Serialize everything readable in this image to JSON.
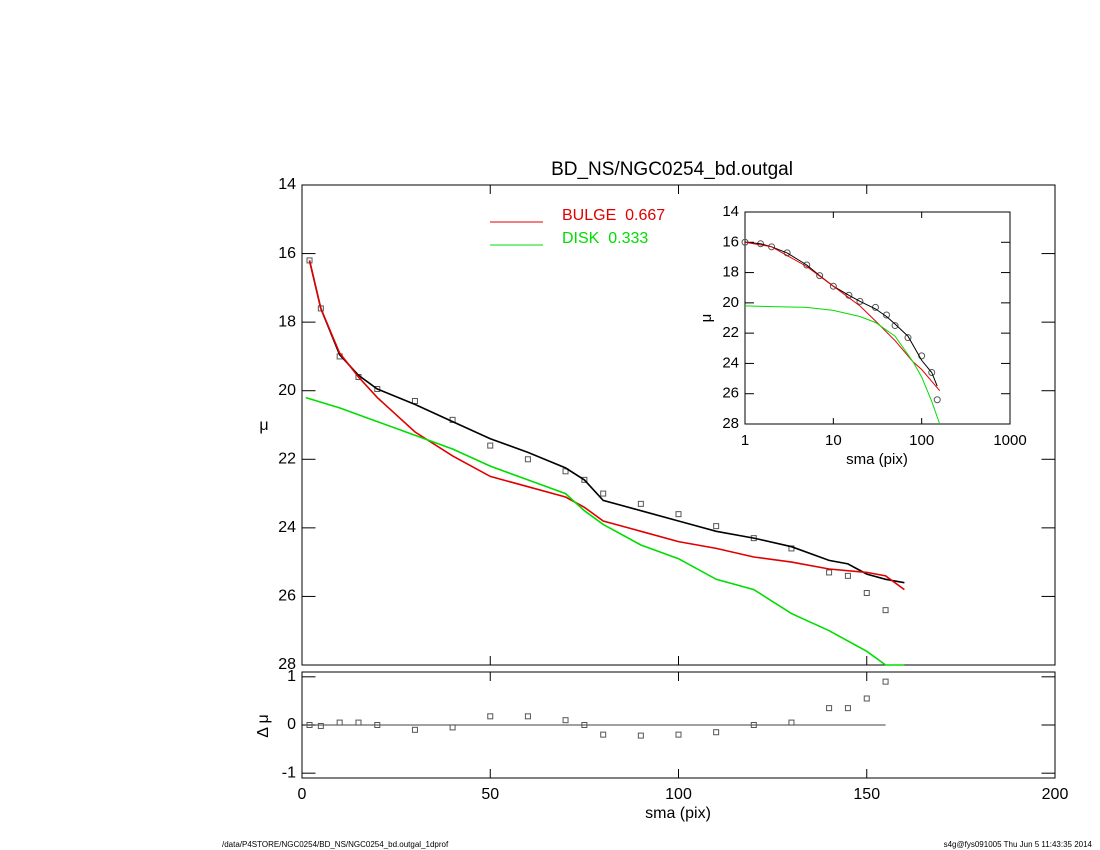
{
  "chart_data": [
    {
      "type": "line",
      "title": "BD_NS/NGC0254_bd.outgal",
      "y_label": "μ",
      "xlim": [
        0,
        200
      ],
      "xticks": [
        0,
        50,
        100,
        150,
        200
      ],
      "x_tick_labels": false,
      "ylim": [
        14,
        28
      ],
      "yticks": [
        14,
        16,
        18,
        20,
        22,
        24,
        26,
        28
      ],
      "y_inverted": true,
      "log_x": false,
      "grid": false,
      "legend": "top-center",
      "series": [
        {
          "color": "#555555",
          "marker": "square",
          "x": [
            2,
            5,
            10,
            15,
            20,
            30,
            40,
            50,
            60,
            70,
            75,
            80,
            90,
            100,
            110,
            120,
            130,
            140,
            145,
            150,
            155
          ],
          "values": [
            16.2,
            17.6,
            19.0,
            19.6,
            19.95,
            20.3,
            20.85,
            21.6,
            22.0,
            22.35,
            22.6,
            23.0,
            23.3,
            23.6,
            23.95,
            24.3,
            24.6,
            25.3,
            25.4,
            25.9,
            26.4
          ]
        },
        {
          "color": "#000000",
          "x": [
            2,
            5,
            10,
            15,
            20,
            30,
            40,
            50,
            60,
            70,
            75,
            80,
            90,
            100,
            110,
            120,
            130,
            140,
            145,
            150,
            155,
            160
          ],
          "values": [
            16.2,
            17.6,
            18.95,
            19.55,
            19.95,
            20.4,
            20.9,
            21.4,
            21.8,
            22.25,
            22.6,
            23.2,
            23.5,
            23.8,
            24.1,
            24.3,
            24.55,
            24.95,
            25.05,
            25.35,
            25.5,
            25.6
          ]
        },
        {
          "name": "BULGE  0.667",
          "color": "#e00000",
          "x": [
            2,
            5,
            10,
            15,
            20,
            30,
            40,
            50,
            60,
            70,
            75,
            80,
            90,
            100,
            110,
            120,
            130,
            140,
            150,
            155,
            160
          ],
          "values": [
            16.2,
            17.6,
            18.9,
            19.6,
            20.2,
            21.2,
            21.9,
            22.5,
            22.8,
            23.1,
            23.4,
            23.8,
            24.1,
            24.4,
            24.6,
            24.85,
            25.0,
            25.2,
            25.3,
            25.4,
            25.8
          ]
        },
        {
          "name": "DISK  0.333",
          "color": "#00dd00",
          "x": [
            1,
            10,
            20,
            30,
            40,
            50,
            60,
            70,
            75,
            80,
            90,
            100,
            110,
            120,
            130,
            140,
            150,
            155,
            160
          ],
          "values": [
            20.2,
            20.5,
            20.9,
            21.3,
            21.7,
            22.2,
            22.6,
            23.0,
            23.5,
            23.9,
            24.5,
            24.9,
            25.5,
            25.8,
            26.5,
            27.0,
            27.6,
            28.0,
            28.0
          ]
        }
      ]
    },
    {
      "type": "scatter",
      "x_label": "sma (pix)",
      "y_label": "Δ μ",
      "xlim": [
        0,
        200
      ],
      "xticks": [
        0,
        50,
        100,
        150,
        200
      ],
      "x_tick_labels": true,
      "ylim": [
        -1.1,
        1.1
      ],
      "yticks": [
        -1,
        0,
        1
      ],
      "y_inverted": false,
      "log_x": false,
      "grid": false,
      "series": [
        {
          "color": "#555555",
          "marker": "square",
          "x": [
            2,
            5,
            10,
            15,
            20,
            30,
            40,
            50,
            60,
            70,
            75,
            80,
            90,
            100,
            110,
            120,
            130,
            140,
            145,
            150,
            155
          ],
          "values": [
            0,
            -0.02,
            0.05,
            0.05,
            0,
            -0.1,
            -0.05,
            0.18,
            0.18,
            0.1,
            0.0,
            -0.2,
            -0.22,
            -0.2,
            -0.15,
            0,
            0.05,
            0.35,
            0.35,
            0.55,
            0.9
          ]
        }
      ]
    },
    {
      "type": "line",
      "x_label": "sma (pix)",
      "y_label": "μ",
      "xlim": [
        1,
        1000
      ],
      "xticks": [
        1,
        10,
        100,
        1000
      ],
      "x_tick_labels": true,
      "log_x": true,
      "ylim": [
        14,
        28
      ],
      "yticks": [
        14,
        16,
        18,
        20,
        22,
        24,
        26,
        28
      ],
      "y_inverted": true,
      "grid": false,
      "series": [
        {
          "color": "#555555",
          "marker": "circle",
          "x": [
            1,
            1.5,
            2,
            3,
            5,
            7,
            10,
            15,
            20,
            30,
            40,
            50,
            70,
            100,
            130,
            150
          ],
          "values": [
            16.0,
            16.1,
            16.3,
            16.7,
            17.5,
            18.2,
            18.9,
            19.5,
            19.9,
            20.3,
            20.8,
            21.5,
            22.3,
            23.5,
            24.6,
            26.4
          ]
        },
        {
          "color": "#000000",
          "x": [
            1,
            1.5,
            2,
            3,
            5,
            7,
            10,
            15,
            20,
            30,
            40,
            50,
            70,
            100,
            130,
            150
          ],
          "values": [
            16.0,
            16.1,
            16.3,
            16.7,
            17.5,
            18.2,
            18.9,
            19.5,
            19.9,
            20.4,
            20.9,
            21.4,
            22.2,
            23.8,
            24.6,
            25.5
          ]
        },
        {
          "color": "#e00000",
          "x": [
            1,
            2,
            5,
            10,
            20,
            30,
            50,
            80,
            100,
            160
          ],
          "values": [
            16.0,
            16.3,
            17.6,
            18.9,
            20.2,
            21.2,
            22.5,
            23.9,
            24.4,
            25.8
          ]
        },
        {
          "color": "#00dd00",
          "x": [
            1,
            5,
            10,
            20,
            30,
            50,
            80,
            100,
            130,
            160
          ],
          "values": [
            20.2,
            20.3,
            20.5,
            20.9,
            21.3,
            22.2,
            23.9,
            24.9,
            26.5,
            28.0
          ]
        }
      ]
    }
  ],
  "footer": {
    "left": "/data/P4STORE/NGC0254/BD_NS/NGC0254_bd.outgal_1dprof",
    "right": "s4g@fys091005  Thu Jun  5 11:43:35 2014"
  }
}
